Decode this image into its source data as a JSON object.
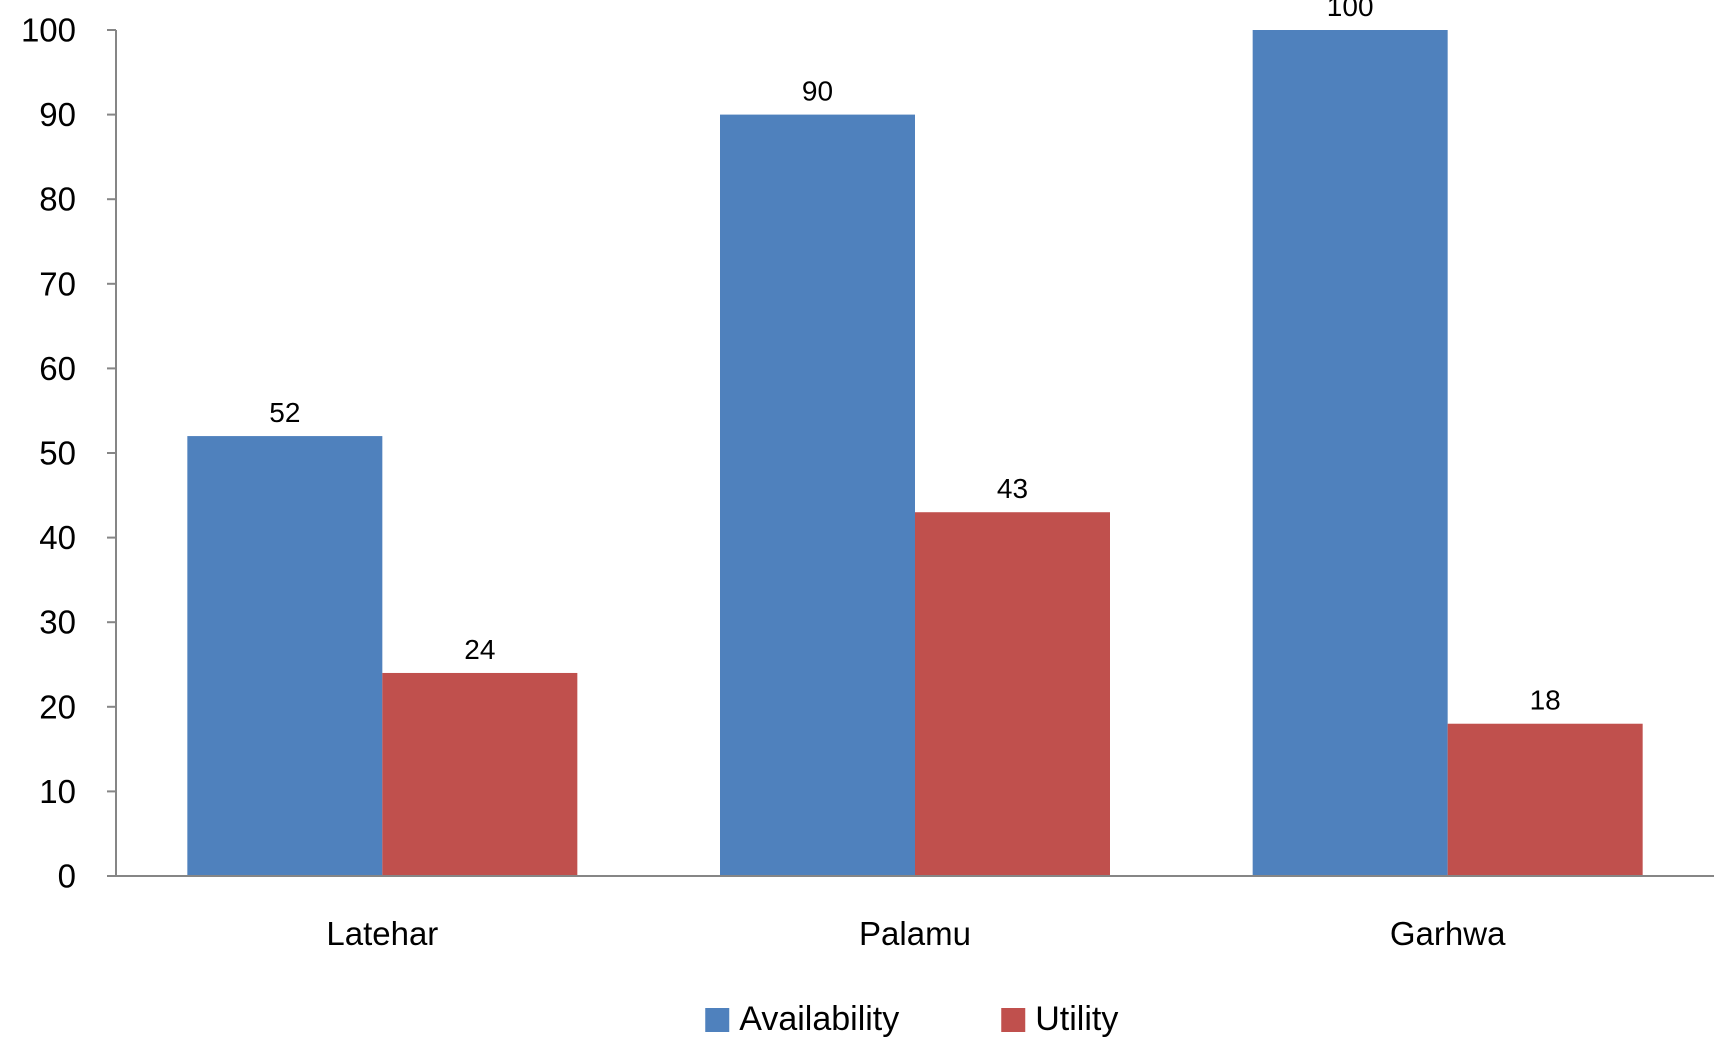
{
  "chart_data": {
    "type": "bar",
    "title": "",
    "xlabel": "",
    "ylabel": "",
    "categories": [
      "Latehar",
      "Palamu",
      "Garhwa"
    ],
    "series": [
      {
        "name": "Availability",
        "values": [
          52,
          90,
          100
        ],
        "color": "#4F81BD"
      },
      {
        "name": "Utility",
        "values": [
          24,
          43,
          18
        ],
        "color": "#C0504D"
      }
    ],
    "ylim": [
      0,
      100
    ],
    "yticks": [
      0,
      10,
      20,
      30,
      40,
      50,
      60,
      70,
      80,
      90,
      100
    ],
    "grid": false,
    "data_labels": true,
    "legend_position": "bottom",
    "axis_color": "#868686"
  }
}
